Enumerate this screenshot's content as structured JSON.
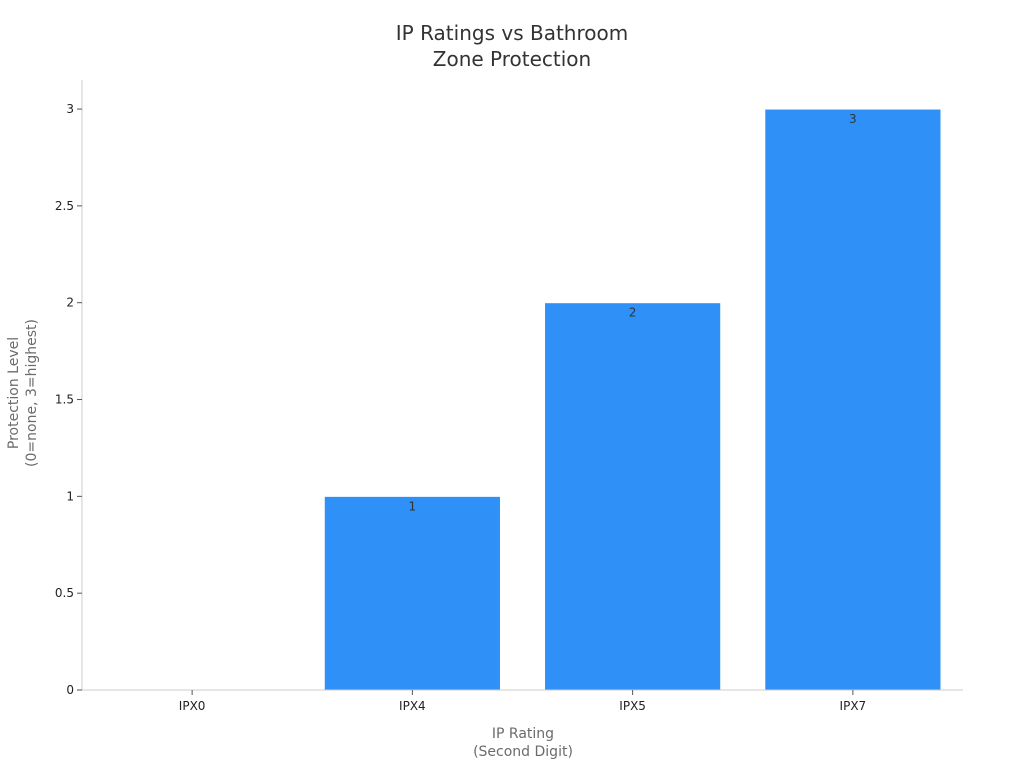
{
  "chart_data": {
    "type": "bar",
    "title": [
      "IP Ratings vs Bathroom",
      "Zone Protection"
    ],
    "xlabel": [
      "IP Rating",
      "(Second Digit)"
    ],
    "ylabel": [
      "Protection Level",
      "(0=none, 3=highest)"
    ],
    "categories": [
      "IPX0",
      "IPX4",
      "IPX5",
      "IPX7"
    ],
    "values": [
      0,
      1,
      2,
      3
    ],
    "data_labels": [
      "",
      "1",
      "2",
      "3"
    ],
    "ylim": [
      0,
      3.15
    ],
    "yticks": [
      0,
      0.5,
      1,
      1.5,
      2,
      2.5,
      3
    ],
    "ytick_labels": [
      "0",
      "0.5",
      "1",
      "1.5",
      "2",
      "2.5",
      "3"
    ],
    "grid": false,
    "legend": "none",
    "bar_color": "#2f91f8"
  }
}
